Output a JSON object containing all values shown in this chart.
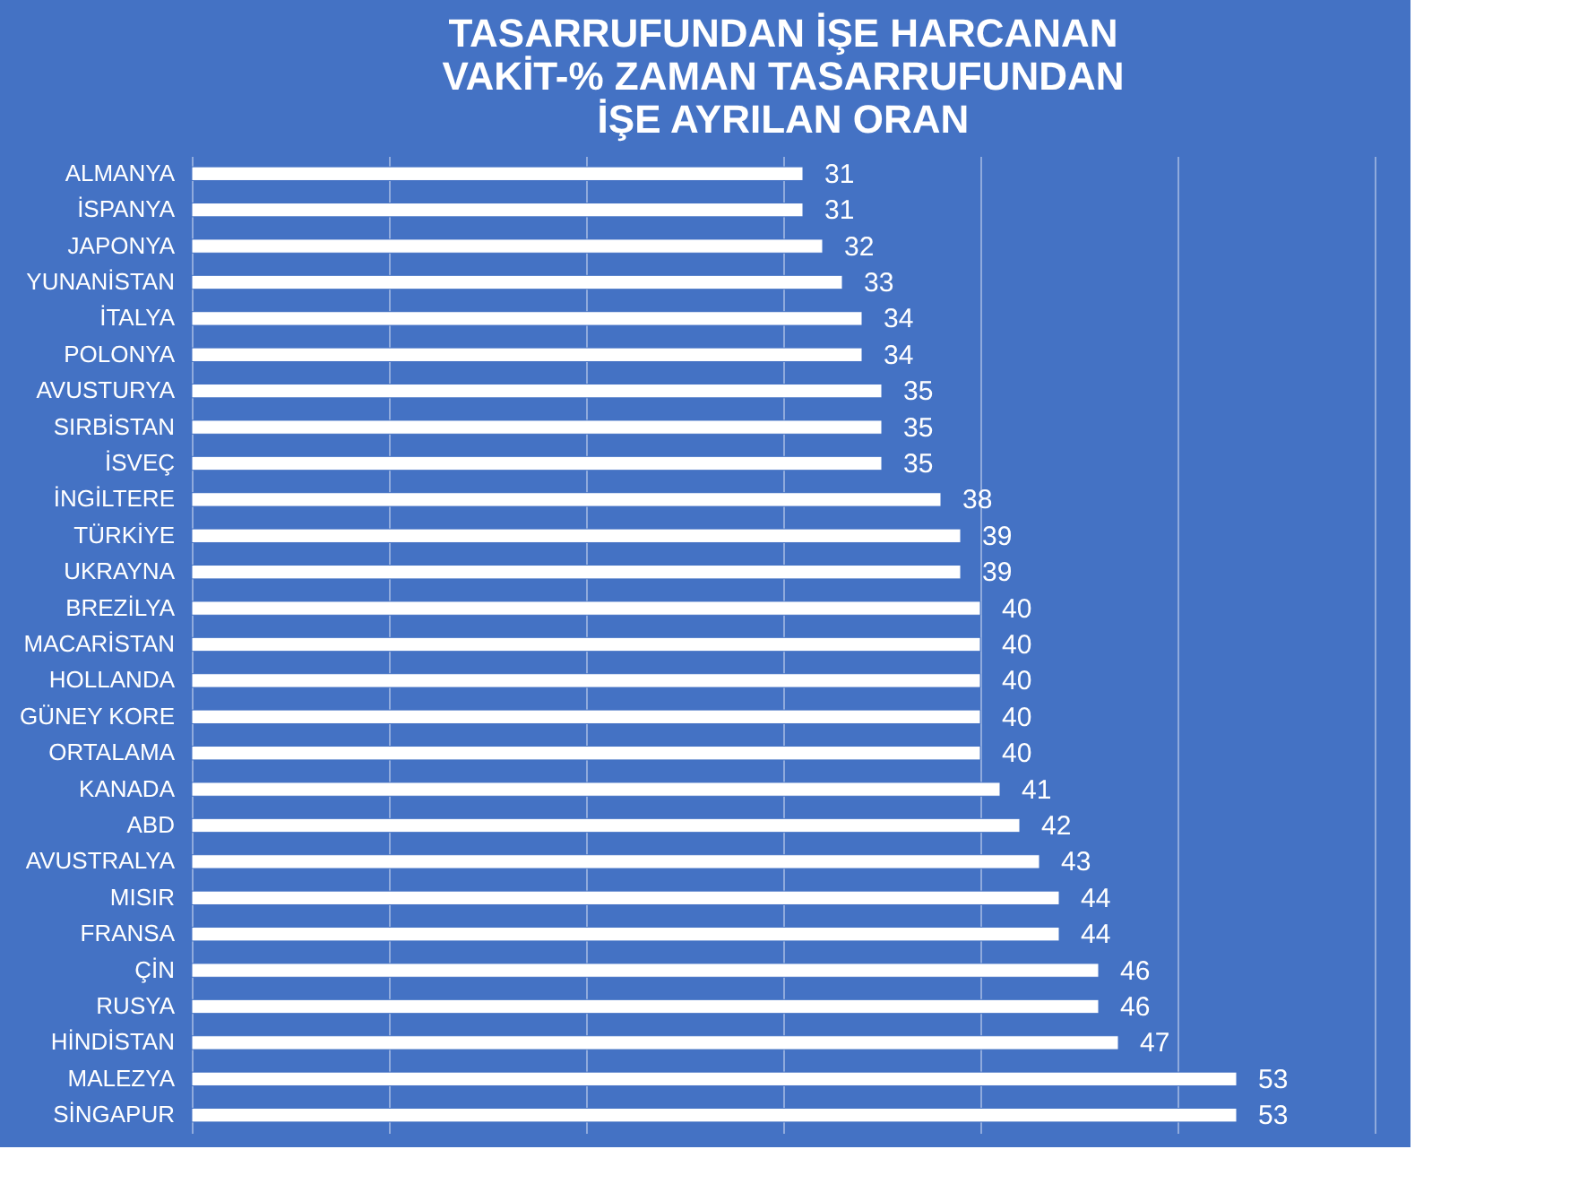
{
  "chart_data": {
    "type": "bar",
    "orientation": "horizontal",
    "title": "TASARRUFUNDAN İŞE HARCANAN VAKİT-% ZAMAN TASARRUFUNDAN İŞE AYRILAN ORAN",
    "categories": [
      "ALMANYA",
      "İSPANYA",
      "JAPONYA",
      "YUNANİSTAN",
      "İTALYA",
      "POLONYA",
      "AVUSTURYA",
      "SIRBİSTAN",
      "İSVEÇ",
      "İNGİLTERE",
      "TÜRKİYE",
      "UKRAYNA",
      "BREZİLYA",
      "MACARİSTAN",
      "HOLLANDA",
      "GÜNEY KORE",
      "ORTALAMA",
      "KANADA",
      "ABD",
      "AVUSTRALYA",
      "MISIR",
      "FRANSA",
      "ÇİN",
      "RUSYA",
      "HİNDİSTAN",
      "MALEZYA",
      "SİNGAPUR"
    ],
    "values": [
      31,
      31,
      32,
      33,
      34,
      34,
      35,
      35,
      35,
      38,
      39,
      39,
      40,
      40,
      40,
      40,
      40,
      41,
      42,
      43,
      44,
      44,
      46,
      46,
      47,
      53,
      53
    ],
    "color": "#ffffff",
    "xlim": [
      0,
      60
    ],
    "xticks": [
      {
        "value": 0,
        "label": null
      },
      {
        "value": 10,
        "label": null
      },
      {
        "value": 20,
        "label": null
      },
      {
        "value": 30,
        "label": null
      },
      {
        "value": 40,
        "label": null
      },
      {
        "value": 50,
        "label": null
      },
      {
        "value": 60,
        "label": null
      }
    ],
    "tick_labels": "y",
    "grid": "x",
    "data_labels": true
  }
}
